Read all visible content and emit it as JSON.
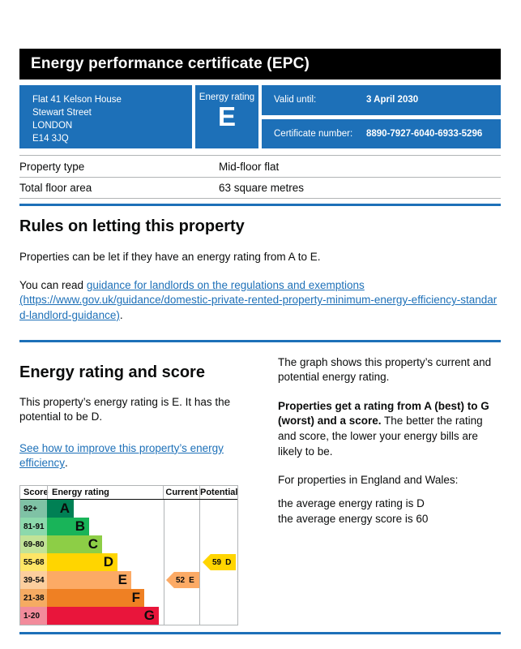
{
  "colors": {
    "primary_blue": "#1d70b8",
    "border_grey": "#b1b4b6",
    "banner_black": "#000000"
  },
  "header": {
    "title": "Energy performance certificate (EPC)"
  },
  "summary": {
    "address_lines": [
      "Flat 41 Kelson House",
      "Stewart Street",
      "LONDON",
      "E14 3JQ"
    ],
    "rating_label": "Energy rating",
    "rating_value": "E",
    "valid_until_label": "Valid until:",
    "valid_until_value": "3 April 2030",
    "certificate_number_label": "Certificate number:",
    "certificate_number_value": "8890-7927-6040-6933-5296"
  },
  "property": {
    "rows": [
      {
        "label": "Property type",
        "value": "Mid-floor flat"
      },
      {
        "label": "Total floor area",
        "value": "63 square metres"
      }
    ]
  },
  "rules": {
    "heading": "Rules on letting this property",
    "para1": "Properties can be let if they have an energy rating from A to E.",
    "para2_prefix": "You can read ",
    "link_text": "guidance for landlords on the regulations and exemptions",
    "link_url_text": "(https://www.gov.uk/guidance/domestic-private-rented-property-minimum-energy-efficiency-standard-landlord-guidance)",
    "para2_suffix": "."
  },
  "rating_section": {
    "heading": "Energy rating and score",
    "intro": "This property’s energy rating is E. It has the potential to be D.",
    "improve_link_text": "See how to improve this property’s energy efficiency",
    "improve_link_suffix": ".",
    "right_para1": "The graph shows this property’s current and potential energy rating.",
    "right_para2_bold": "Properties get a rating from A (best) to G (worst) and a score.",
    "right_para2_rest": " The better the rating and score, the lower your energy bills are likely to be.",
    "right_para3": "For properties in England and Wales:",
    "right_para4_line1": "the average energy rating is D",
    "right_para4_line2": "the average energy score is 60"
  },
  "chart_data": {
    "type": "bar",
    "title": "Energy rating and score",
    "columns": [
      "Score",
      "Energy rating",
      "Current",
      "Potential"
    ],
    "bands": [
      {
        "score": "92+",
        "letter": "A",
        "color": "#008054",
        "score_bg": "#7fc2a5"
      },
      {
        "score": "81-91",
        "letter": "B",
        "color": "#19b459",
        "score_bg": "#8cd9ac"
      },
      {
        "score": "69-80",
        "letter": "C",
        "color": "#8dce46",
        "score_bg": "#c2e397"
      },
      {
        "score": "55-68",
        "letter": "D",
        "color": "#ffd500",
        "score_bg": "#ffe566"
      },
      {
        "score": "39-54",
        "letter": "E",
        "color": "#fcaa65",
        "score_bg": "#fcce9e"
      },
      {
        "score": "21-38",
        "letter": "F",
        "color": "#ef8023",
        "score_bg": "#f5ab62"
      },
      {
        "score": "1-20",
        "letter": "G",
        "color": "#e9153b",
        "score_bg": "#f28b9b"
      }
    ],
    "current": {
      "score": "52",
      "band": "E",
      "color": "#fcaa65"
    },
    "potential": {
      "score": "59",
      "band": "D",
      "color": "#ffd500"
    }
  }
}
